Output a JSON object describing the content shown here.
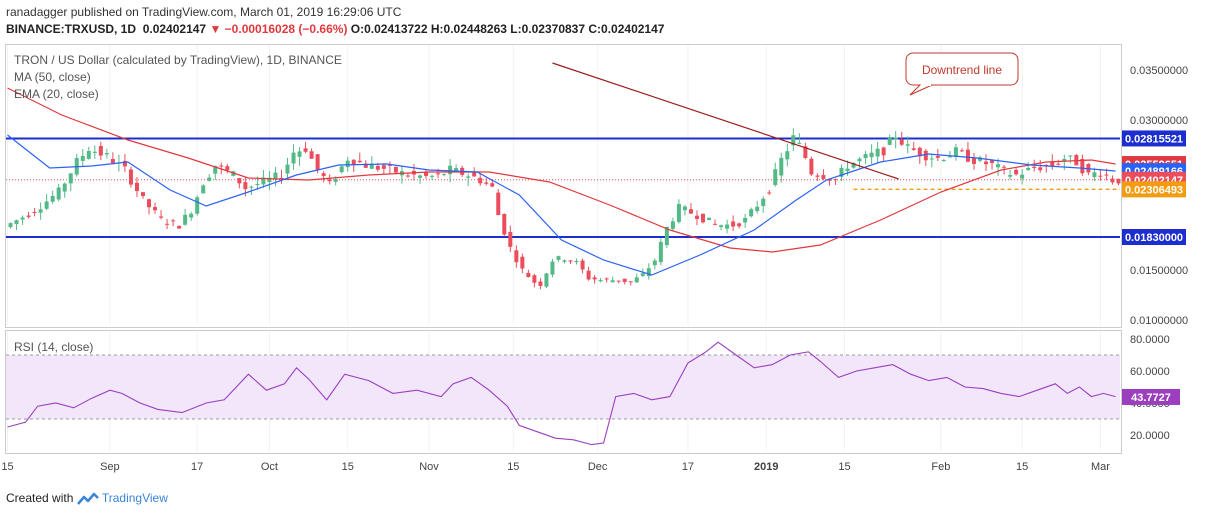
{
  "header": {
    "publisher": "ranadagger",
    "published_text": "published on TradingView.com, March 01, 2019 16:29:06 UTC",
    "symbol": "BINANCE:TRXUSD, 1D",
    "close": "0.02402147",
    "change": "−0.00016028 (−0.66%)",
    "open_label": "O:",
    "open": "0.02413722",
    "high_label": "H:",
    "high": "0.02448263",
    "low_label": "L:",
    "low": "0.02370837",
    "close_label": "C:",
    "close_val": "0.02402147"
  },
  "legend": {
    "title": "TRON / US Dollar (calculated by TradingView), 1D, BINANCE",
    "ma": "MA (50, close)",
    "ema": "EMA (20, close)",
    "rsi": "RSI (14, close)"
  },
  "annotation": {
    "text": "Downtrend line"
  },
  "footer": {
    "created_with": "Created with",
    "brand": "TradingView"
  },
  "colors": {
    "up": "#53b987",
    "down": "#eb4d5c",
    "ma": "#e0393e",
    "ema": "#2a62f6",
    "level": "#1c2ecf",
    "trend": "#9a1f1f",
    "support": "#f39c12",
    "rsi": "#9b3fbf"
  },
  "chart_data": [
    {
      "type": "candlestick",
      "title": "TRON / US Dollar (calculated by TradingView), 1D, BINANCE",
      "ylim": [
        0.0095,
        0.0375
      ],
      "y_ticks": [
        "0.03500000",
        "0.03000000",
        "0.01500000",
        "0.01000000"
      ],
      "x_ticks": [
        "15",
        "Sep",
        "17",
        "Oct",
        "15",
        "Nov",
        "15",
        "Dec",
        "17",
        "2019",
        "15",
        "Feb",
        "15",
        "Mar"
      ],
      "price_labels": [
        {
          "text": "0.02815521",
          "value": 0.02815521,
          "kind": "level"
        },
        {
          "text": "0.02559651",
          "value": 0.02559651,
          "kind": "ma"
        },
        {
          "text": "0.02489166",
          "value": 0.02489166,
          "kind": "ema"
        },
        {
          "text": "0.02402147",
          "value": 0.02402147,
          "kind": "last"
        },
        {
          "text": "0.02306493",
          "value": 0.02306493,
          "kind": "support"
        },
        {
          "text": "0.01830000",
          "value": 0.0183,
          "kind": "level"
        }
      ],
      "horizontal_levels": [
        0.02815521,
        0.0183
      ],
      "support_line": 0.02306493,
      "trendline": [
        {
          "day": 181,
          "price": 0.0357
        },
        {
          "day": 296,
          "price": 0.0241
        }
      ],
      "close_path": [
        [
          0,
          0.0193
        ],
        [
          10,
          0.021
        ],
        [
          18,
          0.0228
        ],
        [
          24,
          0.0258
        ],
        [
          28,
          0.0272
        ],
        [
          35,
          0.0262
        ],
        [
          40,
          0.025
        ],
        [
          46,
          0.022
        ],
        [
          52,
          0.02
        ],
        [
          58,
          0.0195
        ],
        [
          62,
          0.021
        ],
        [
          66,
          0.0238
        ],
        [
          70,
          0.0255
        ],
        [
          76,
          0.0245
        ],
        [
          80,
          0.0232
        ],
        [
          86,
          0.0238
        ],
        [
          92,
          0.0245
        ],
        [
          96,
          0.0268
        ],
        [
          100,
          0.0272
        ],
        [
          104,
          0.025
        ],
        [
          108,
          0.0235
        ],
        [
          114,
          0.0262
        ],
        [
          120,
          0.0255
        ],
        [
          128,
          0.025
        ],
        [
          134,
          0.0245
        ],
        [
          140,
          0.0243
        ],
        [
          144,
          0.0244
        ],
        [
          148,
          0.025
        ],
        [
          154,
          0.0245
        ],
        [
          158,
          0.024
        ],
        [
          162,
          0.0232
        ],
        [
          164,
          0.0205
        ],
        [
          168,
          0.0172
        ],
        [
          172,
          0.015
        ],
        [
          176,
          0.0138
        ],
        [
          178,
          0.0136
        ],
        [
          182,
          0.016
        ],
        [
          186,
          0.0162
        ],
        [
          190,
          0.0157
        ],
        [
          194,
          0.0142
        ],
        [
          198,
          0.014
        ],
        [
          204,
          0.014
        ],
        [
          208,
          0.0138
        ],
        [
          212,
          0.0145
        ],
        [
          216,
          0.016
        ],
        [
          220,
          0.0192
        ],
        [
          224,
          0.0212
        ],
        [
          230,
          0.0205
        ],
        [
          236,
          0.0195
        ],
        [
          242,
          0.0195
        ],
        [
          246,
          0.02
        ],
        [
          250,
          0.0215
        ],
        [
          254,
          0.0232
        ],
        [
          258,
          0.026
        ],
        [
          262,
          0.0282
        ],
        [
          265,
          0.027
        ],
        [
          268,
          0.0248
        ],
        [
          272,
          0.0245
        ],
        [
          276,
          0.024
        ],
        [
          280,
          0.0255
        ],
        [
          286,
          0.0262
        ],
        [
          292,
          0.027
        ],
        [
          296,
          0.0285
        ],
        [
          300,
          0.0272
        ],
        [
          306,
          0.0265
        ],
        [
          310,
          0.0262
        ],
        [
          316,
          0.0268
        ],
        [
          322,
          0.026
        ],
        [
          328,
          0.0255
        ],
        [
          332,
          0.0248
        ],
        [
          336,
          0.0245
        ],
        [
          342,
          0.0252
        ],
        [
          348,
          0.0255
        ],
        [
          352,
          0.0262
        ],
        [
          356,
          0.0258
        ],
        [
          360,
          0.0245
        ],
        [
          364,
          0.0248
        ],
        [
          368,
          0.024
        ]
      ],
      "ma50_path": [
        [
          0,
          0.0332
        ],
        [
          18,
          0.0305
        ],
        [
          40,
          0.028
        ],
        [
          60,
          0.0262
        ],
        [
          80,
          0.0242
        ],
        [
          100,
          0.024
        ],
        [
          120,
          0.0245
        ],
        [
          140,
          0.0248
        ],
        [
          160,
          0.0248
        ],
        [
          180,
          0.0238
        ],
        [
          200,
          0.0215
        ],
        [
          220,
          0.019
        ],
        [
          240,
          0.0172
        ],
        [
          254,
          0.0168
        ],
        [
          270,
          0.0175
        ],
        [
          290,
          0.02
        ],
        [
          310,
          0.0228
        ],
        [
          330,
          0.025
        ],
        [
          345,
          0.0258
        ],
        [
          360,
          0.026
        ],
        [
          368,
          0.0256
        ]
      ],
      "ema20_path": [
        [
          0,
          0.0285
        ],
        [
          14,
          0.0252
        ],
        [
          28,
          0.0254
        ],
        [
          40,
          0.0258
        ],
        [
          54,
          0.023
        ],
        [
          66,
          0.0214
        ],
        [
          80,
          0.0228
        ],
        [
          96,
          0.0245
        ],
        [
          110,
          0.0255
        ],
        [
          126,
          0.0256
        ],
        [
          140,
          0.025
        ],
        [
          156,
          0.0248
        ],
        [
          170,
          0.0225
        ],
        [
          184,
          0.018
        ],
        [
          198,
          0.016
        ],
        [
          214,
          0.0145
        ],
        [
          230,
          0.0165
        ],
        [
          248,
          0.019
        ],
        [
          262,
          0.022
        ],
        [
          272,
          0.024
        ],
        [
          290,
          0.0258
        ],
        [
          306,
          0.0266
        ],
        [
          322,
          0.0262
        ],
        [
          340,
          0.0255
        ],
        [
          356,
          0.0252
        ],
        [
          368,
          0.0249
        ]
      ]
    },
    {
      "type": "line",
      "title": "RSI (14, close)",
      "ylim": [
        10,
        85
      ],
      "y_ticks": [
        "80.0000",
        "60.0000",
        "40.0000",
        "20.0000"
      ],
      "band": [
        30,
        70
      ],
      "last_label": "43.7727",
      "last_value": 43.7727,
      "rsi_path": [
        [
          0,
          25
        ],
        [
          6,
          28
        ],
        [
          10,
          38
        ],
        [
          16,
          40
        ],
        [
          22,
          37
        ],
        [
          28,
          43
        ],
        [
          34,
          48
        ],
        [
          38,
          46
        ],
        [
          44,
          40
        ],
        [
          50,
          36
        ],
        [
          58,
          34
        ],
        [
          66,
          40
        ],
        [
          72,
          42
        ],
        [
          80,
          58
        ],
        [
          86,
          48
        ],
        [
          92,
          52
        ],
        [
          96,
          62
        ],
        [
          100,
          55
        ],
        [
          106,
          42
        ],
        [
          112,
          58
        ],
        [
          120,
          54
        ],
        [
          128,
          46
        ],
        [
          136,
          48
        ],
        [
          144,
          44
        ],
        [
          148,
          52
        ],
        [
          154,
          56
        ],
        [
          160,
          48
        ],
        [
          166,
          38
        ],
        [
          170,
          26
        ],
        [
          176,
          22
        ],
        [
          182,
          18
        ],
        [
          188,
          17
        ],
        [
          194,
          14
        ],
        [
          198,
          15
        ],
        [
          202,
          44
        ],
        [
          208,
          46
        ],
        [
          214,
          42
        ],
        [
          220,
          44
        ],
        [
          226,
          65
        ],
        [
          232,
          72
        ],
        [
          236,
          78
        ],
        [
          242,
          70
        ],
        [
          248,
          62
        ],
        [
          254,
          64
        ],
        [
          260,
          70
        ],
        [
          266,
          72
        ],
        [
          270,
          66
        ],
        [
          276,
          56
        ],
        [
          282,
          60
        ],
        [
          288,
          62
        ],
        [
          294,
          64
        ],
        [
          300,
          58
        ],
        [
          306,
          54
        ],
        [
          312,
          56
        ],
        [
          318,
          50
        ],
        [
          324,
          49
        ],
        [
          330,
          46
        ],
        [
          336,
          44
        ],
        [
          342,
          48
        ],
        [
          348,
          52
        ],
        [
          352,
          46
        ],
        [
          356,
          50
        ],
        [
          360,
          44
        ],
        [
          364,
          46
        ],
        [
          368,
          44
        ]
      ]
    }
  ]
}
